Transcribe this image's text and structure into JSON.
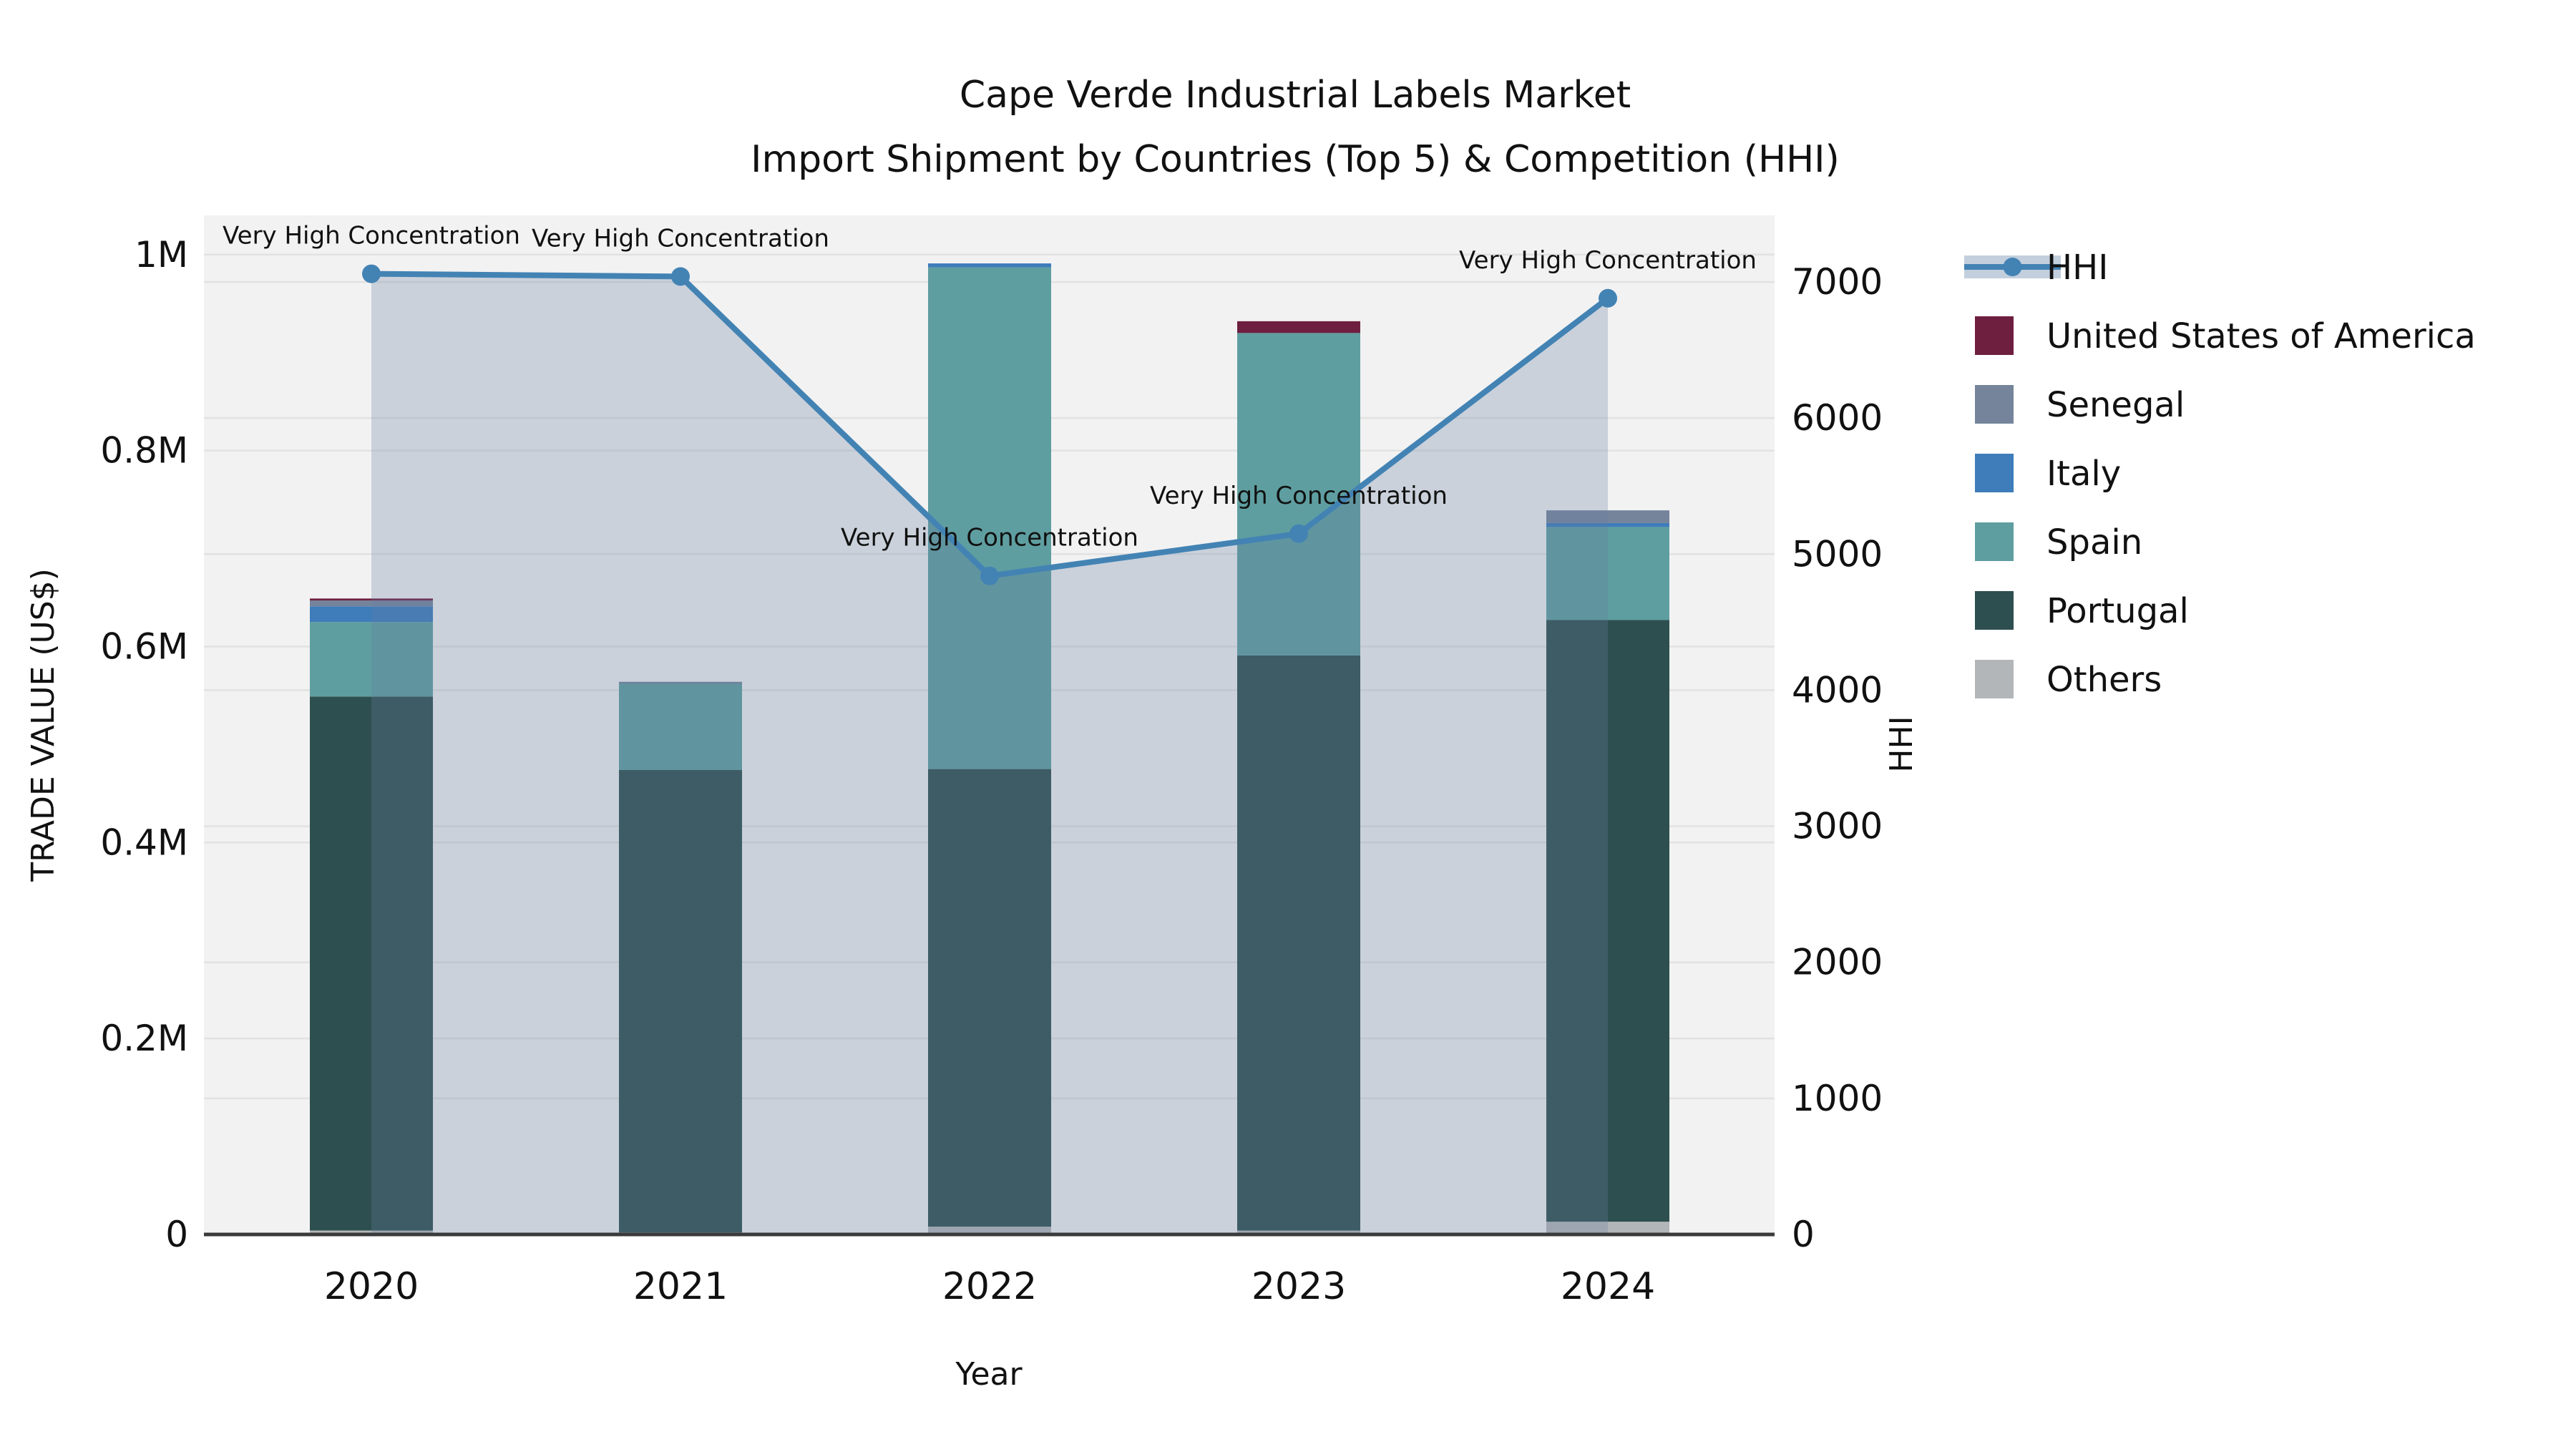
{
  "header": {
    "title_line1": "Cape Verde Industrial Labels Market",
    "title_line2": "Import Shipment by Countries (Top 5) & Competition (HHI)"
  },
  "chart_data": {
    "type": "stacked-bar+line",
    "x_label": "Year",
    "y_left_label": "TRADE VALUE (US$)",
    "y_right_label": "HHI",
    "categories": [
      "2020",
      "2021",
      "2022",
      "2023",
      "2024"
    ],
    "stack_series_bottom_to_top": [
      {
        "name": "Others",
        "color": "#b3b6b8",
        "values": [
          4000,
          2000,
          8000,
          4000,
          13000
        ]
      },
      {
        "name": "Portugal",
        "color": "#2e4f4f",
        "values": [
          545000,
          472000,
          467000,
          587000,
          614000
        ]
      },
      {
        "name": "Spain",
        "color": "#5f9ea0",
        "values": [
          76000,
          88000,
          512000,
          329000,
          95000
        ]
      },
      {
        "name": "Italy",
        "color": "#3e7cba",
        "values": [
          16000,
          0,
          4000,
          0,
          4000
        ]
      },
      {
        "name": "Senegal",
        "color": "#75849b",
        "values": [
          6000,
          2000,
          0,
          0,
          13000
        ]
      },
      {
        "name": "United States of America",
        "color": "#6e1e3f",
        "values": [
          2000,
          0,
          0,
          12000,
          0
        ]
      }
    ],
    "line_series": {
      "name": "HHI",
      "color": "#4383b4",
      "area_fill": "rgba(100,125,160,0.28)",
      "values": [
        7060,
        7040,
        4840,
        5150,
        6880
      ]
    },
    "annotations": [
      {
        "category": "2020",
        "text": "Very High Concentration"
      },
      {
        "category": "2021",
        "text": "Very High Concentration"
      },
      {
        "category": "2022",
        "text": "Very High Concentration"
      },
      {
        "category": "2023",
        "text": "Very High Concentration"
      },
      {
        "category": "2024",
        "text": "Very High Concentration"
      }
    ],
    "y_left_ticks": [
      {
        "v": 0,
        "label": "0"
      },
      {
        "v": 200000,
        "label": "0.2M"
      },
      {
        "v": 400000,
        "label": "0.4M"
      },
      {
        "v": 600000,
        "label": "0.6M"
      },
      {
        "v": 800000,
        "label": "0.8M"
      },
      {
        "v": 1000000,
        "label": "1M"
      }
    ],
    "y_right_ticks": [
      {
        "v": 0,
        "label": "0"
      },
      {
        "v": 1000,
        "label": "1000"
      },
      {
        "v": 2000,
        "label": "2000"
      },
      {
        "v": 3000,
        "label": "3000"
      },
      {
        "v": 4000,
        "label": "4000"
      },
      {
        "v": 5000,
        "label": "5000"
      },
      {
        "v": 6000,
        "label": "6000"
      },
      {
        "v": 7000,
        "label": "7000"
      }
    ],
    "y_left_max": 1040000,
    "y_right_max": 7489,
    "legend": [
      {
        "label": "HHI",
        "type": "line",
        "color": "#4383b4",
        "band_color": "#c3cfdd"
      },
      {
        "label": "United States of America",
        "type": "swatch",
        "color": "#6e1e3f"
      },
      {
        "label": "Senegal",
        "type": "swatch",
        "color": "#75849b"
      },
      {
        "label": "Italy",
        "type": "swatch",
        "color": "#3e7cba"
      },
      {
        "label": "Spain",
        "type": "swatch",
        "color": "#5f9ea0"
      },
      {
        "label": "Portugal",
        "type": "swatch",
        "color": "#2e4f4f"
      },
      {
        "label": "Others",
        "type": "swatch",
        "color": "#b3b6b8"
      }
    ],
    "style": {
      "plot_bg": "#f2f2f2",
      "grid_color": "#e2e2e2",
      "axis_line_color": "#3a3a3a"
    }
  }
}
